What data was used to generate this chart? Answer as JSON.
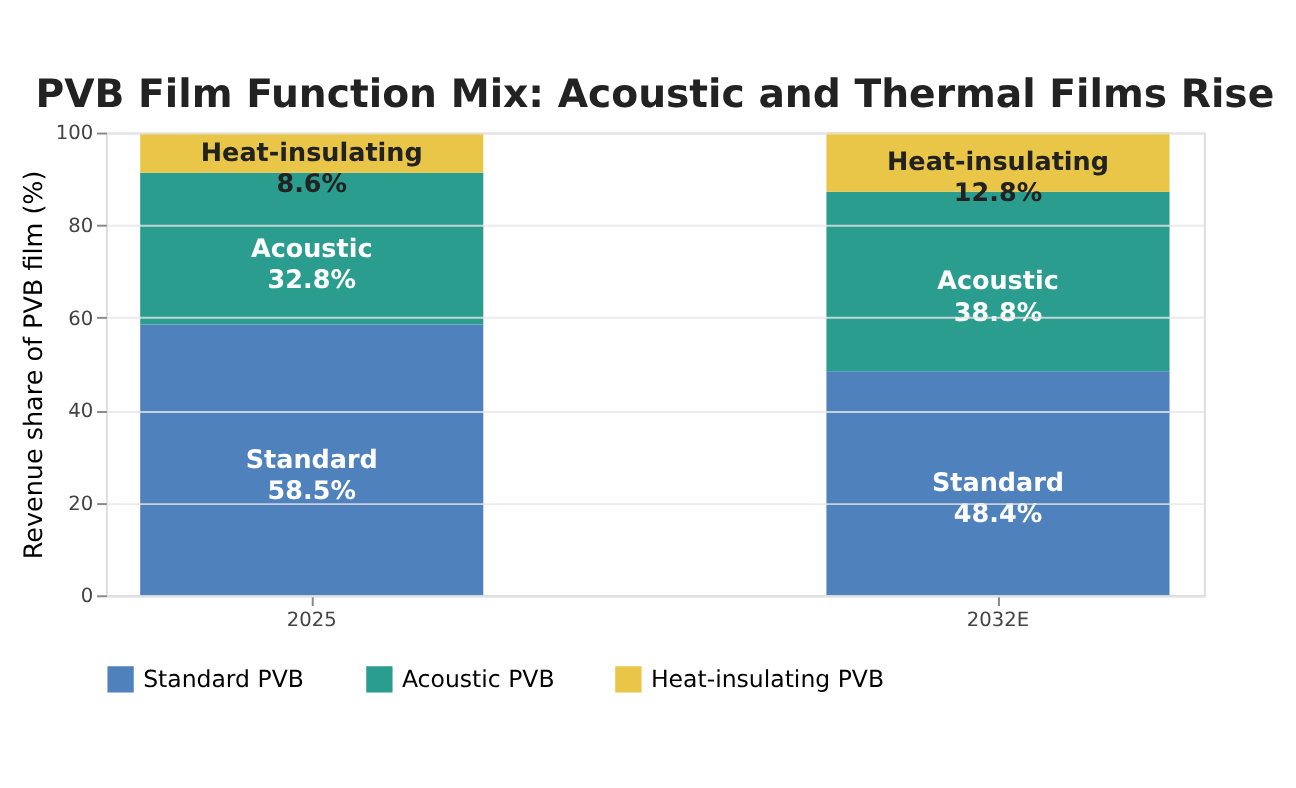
{
  "chart_data": {
    "type": "bar",
    "title": "PVB Film Function Mix: Acoustic and Thermal Films Rise",
    "ylabel": "Revenue share of PVB film (%)",
    "categories": [
      "2025",
      "2032E"
    ],
    "stacked": true,
    "series": [
      {
        "name": "Standard PVB",
        "color": "#4f81bd",
        "values": [
          58.5,
          48.4
        ],
        "value_labels": [
          "Standard\n58.5%",
          "Standard\n48.4%"
        ]
      },
      {
        "name": "Acoustic PVB",
        "color": "#2a9d8f",
        "values": [
          32.8,
          38.8
        ],
        "value_labels": [
          "Acoustic\n32.8%",
          "Acoustic\n38.8%"
        ]
      },
      {
        "name": "Heat-insulating PVB",
        "color": "#e9c548",
        "values": [
          8.6,
          12.8
        ],
        "value_labels": [
          "Heat-insulating\n8.6%",
          "Heat-insulating\n12.8%"
        ]
      }
    ],
    "ylim": [
      0,
      100
    ],
    "yticks": [
      0,
      20,
      40,
      60,
      80,
      100
    ],
    "grid": "y",
    "legend": "bottom"
  }
}
